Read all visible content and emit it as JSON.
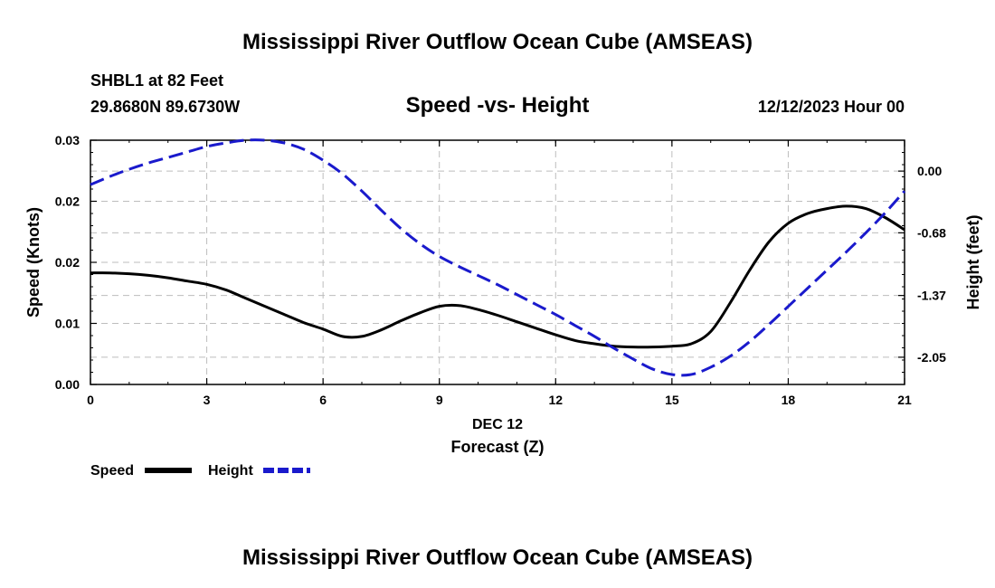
{
  "header": {
    "title": "Mississippi River Outflow Ocean Cube (AMSEAS)",
    "station": "SHBL1 at 82 Feet",
    "coords": "29.8680N  89.6730W",
    "plot_title": "Speed -vs- Height",
    "datetime": "12/12/2023 Hour 00"
  },
  "footer": {
    "title": "Mississippi River Outflow Ocean Cube (AMSEAS)"
  },
  "chart_data": {
    "type": "line",
    "title": "Speed -vs- Height",
    "xlabel": "Forecast (Z)",
    "xlabel_date": "DEC 12",
    "ylabel": "Speed (Knots)",
    "y2label": "Height (feet)",
    "xlim": [
      0,
      21
    ],
    "ylim": [
      0,
      0.03
    ],
    "y2lim": [
      -2.35,
      0.34
    ],
    "grid": true,
    "x_ticks": [
      "0",
      "3",
      "6",
      "9",
      "12",
      "15",
      "18",
      "21"
    ],
    "y_ticks": [
      "0.00",
      "0.01",
      "0.02",
      "0.02",
      "0.03"
    ],
    "y_tick_values": [
      0,
      0.0075,
      0.015,
      0.0225,
      0.03
    ],
    "y2_ticks": [
      "0.00",
      "-0.68",
      "-1.37",
      "-2.05"
    ],
    "y2_tick_values": [
      0,
      -0.68,
      -1.37,
      -2.05
    ],
    "series": [
      {
        "name": "Speed",
        "axis": "left",
        "color": "#000000",
        "dash": "solid",
        "x": [
          0,
          0.5,
          1,
          1.5,
          2,
          2.5,
          3,
          3.5,
          4,
          4.5,
          5,
          5.5,
          6,
          6.5,
          7,
          7.5,
          8,
          8.5,
          9,
          9.5,
          10,
          10.5,
          11,
          11.5,
          12,
          12.5,
          13,
          13.5,
          14,
          14.5,
          15,
          15.5,
          16,
          16.5,
          17,
          17.5,
          18,
          18.5,
          19,
          19.5,
          20,
          20.5,
          21
        ],
        "values": [
          0.0137,
          0.0137,
          0.0136,
          0.0134,
          0.0131,
          0.0127,
          0.0123,
          0.0116,
          0.0106,
          0.0096,
          0.0086,
          0.0076,
          0.0068,
          0.0059,
          0.0059,
          0.0067,
          0.0078,
          0.0088,
          0.0096,
          0.0097,
          0.0092,
          0.0085,
          0.0077,
          0.0069,
          0.0061,
          0.0054,
          0.005,
          0.0047,
          0.0046,
          0.0046,
          0.0047,
          0.005,
          0.0065,
          0.01,
          0.014,
          0.0175,
          0.0198,
          0.021,
          0.0216,
          0.0219,
          0.0216,
          0.0205,
          0.019
        ]
      },
      {
        "name": "Height",
        "axis": "right",
        "color": "#1a1acc",
        "dash": "dashed",
        "x": [
          0,
          0.5,
          1,
          1.5,
          2,
          2.5,
          3,
          3.5,
          4,
          4.5,
          5,
          5.5,
          6,
          6.5,
          7,
          7.5,
          8,
          8.5,
          9,
          9.5,
          10,
          10.5,
          11,
          11.5,
          12,
          12.5,
          13,
          13.5,
          14,
          14.5,
          15,
          15.5,
          16,
          16.5,
          17,
          17.5,
          18,
          18.5,
          19,
          19.5,
          20,
          20.5,
          21
        ],
        "values": [
          -0.15,
          -0.06,
          0.02,
          0.09,
          0.15,
          0.21,
          0.27,
          0.31,
          0.34,
          0.34,
          0.31,
          0.24,
          0.12,
          -0.03,
          -0.22,
          -0.43,
          -0.63,
          -0.8,
          -0.94,
          -1.05,
          -1.15,
          -1.25,
          -1.36,
          -1.47,
          -1.58,
          -1.7,
          -1.82,
          -1.95,
          -2.07,
          -2.18,
          -2.24,
          -2.24,
          -2.16,
          -2.04,
          -1.88,
          -1.69,
          -1.49,
          -1.29,
          -1.09,
          -0.89,
          -0.68,
          -0.46,
          -0.22
        ]
      }
    ],
    "legend": {
      "placement": "bottom-left",
      "entries": [
        "Speed",
        "Height"
      ]
    }
  }
}
